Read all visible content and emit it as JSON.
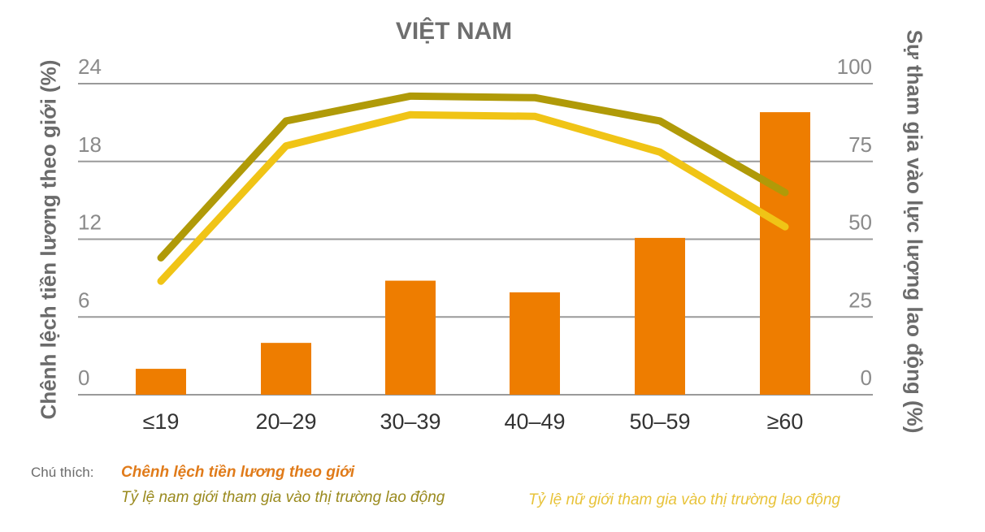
{
  "chart_data": {
    "type": "bar+line",
    "title": "VIỆT NAM",
    "categories": [
      "≤19",
      "20–29",
      "30–39",
      "40–49",
      "50–59",
      "≥60"
    ],
    "ylabel_left": "Chênh lệch tiền lương theo giới (%)",
    "ylabel_right": "Sự tham gia vào lực lượng lao động (%)",
    "ylim_left": [
      0,
      24
    ],
    "ylim_right": [
      0,
      100
    ],
    "yticks_left": [
      "0",
      "6",
      "12",
      "18",
      "24"
    ],
    "yticks_right": [
      "0",
      "25",
      "50",
      "75",
      "100"
    ],
    "grid": true,
    "series": [
      {
        "name": "Chênh lệch tiền lương theo giới",
        "type": "bar",
        "axis": "left",
        "color": "#ee7d00",
        "values": [
          2.0,
          4.0,
          8.8,
          7.9,
          12.1,
          21.8
        ]
      },
      {
        "name": "Tỷ lệ nam giới tham gia vào thị trường lao động",
        "type": "line",
        "axis": "right",
        "color": "#b09a08",
        "values": [
          44,
          88,
          96,
          95.5,
          88,
          65
        ]
      },
      {
        "name": "Tỷ lệ nữ giới tham gia vào thị trường lao động",
        "type": "line",
        "axis": "right",
        "color": "#f0c416",
        "values": [
          36.5,
          80,
          90,
          89.5,
          78,
          54
        ]
      }
    ],
    "legend_position": "bottom"
  },
  "legend": {
    "prefix": "Chú thích:",
    "wage_gap": "Chênh lệch tiền lương theo giới",
    "male": "Tỷ lệ nam giới tham gia vào thị trường lao động",
    "female": "Tỷ lệ nữ giới tham gia vào thị trường lao động"
  }
}
